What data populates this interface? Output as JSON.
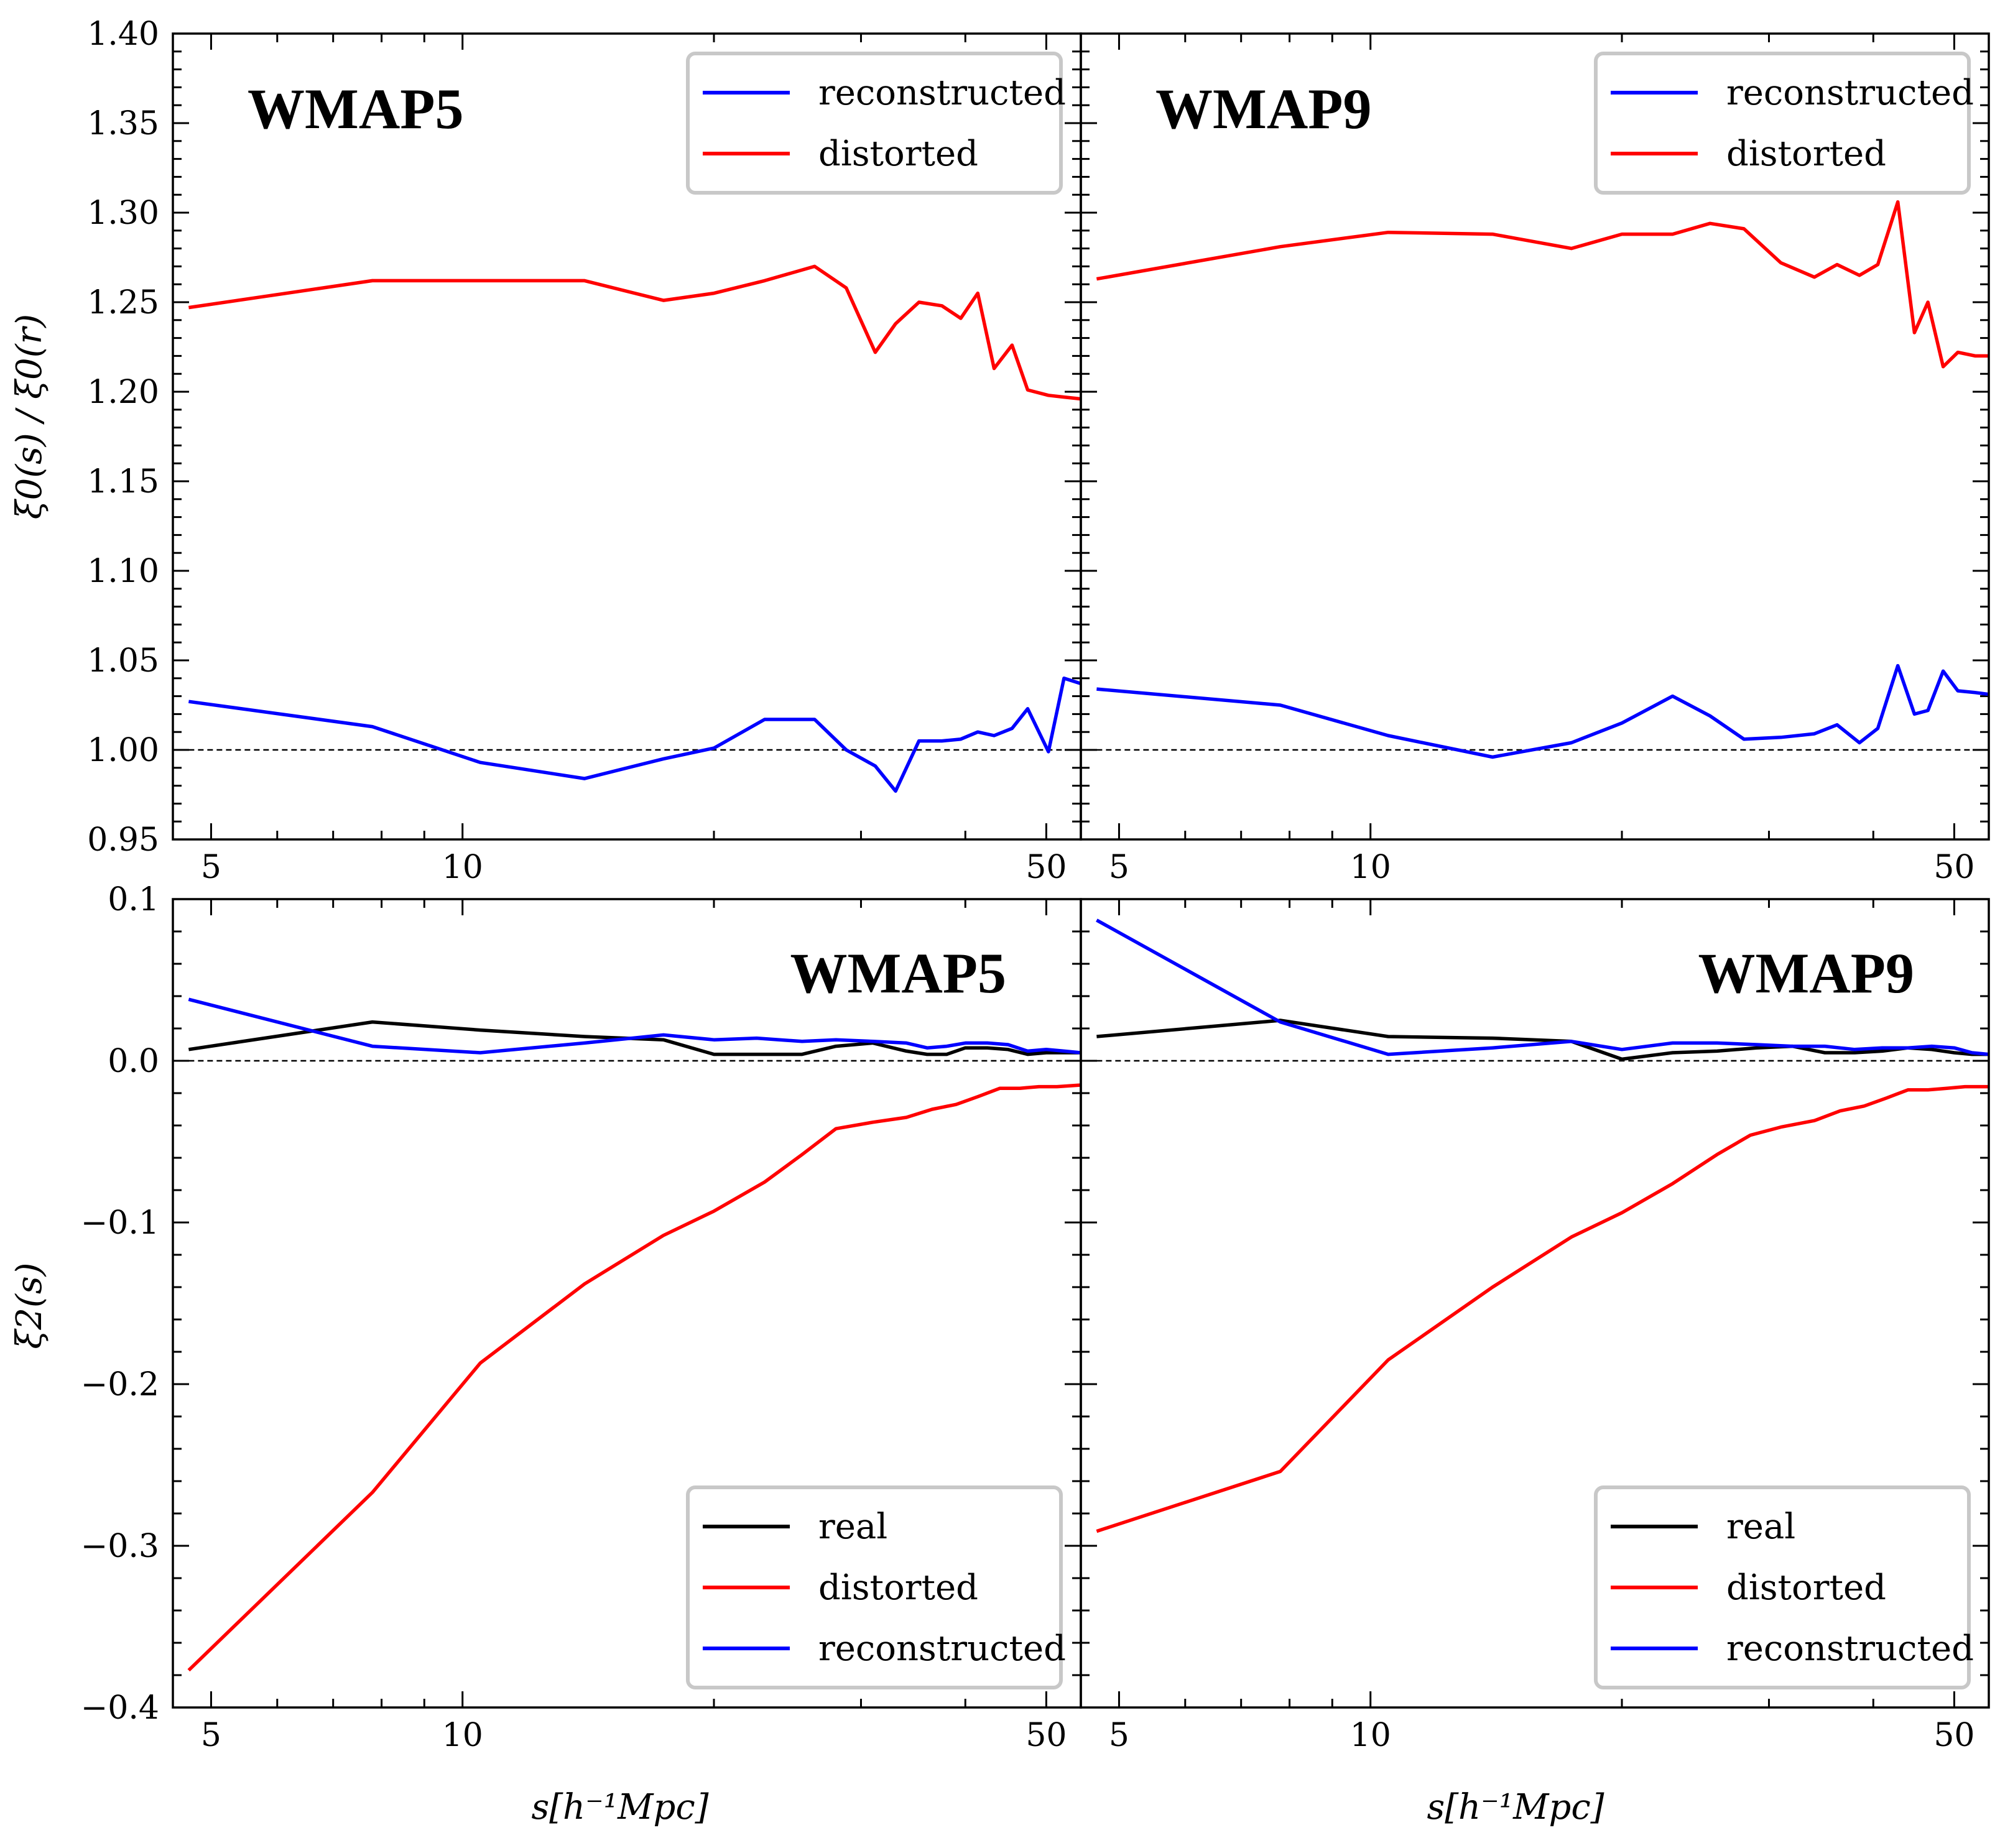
{
  "figure": {
    "xlabel": "s[h⁻¹Mpc]",
    "ylabel_top": "ξ0(s) / ξ0(r)",
    "ylabel_bottom": "ξ2(s)"
  },
  "colors": {
    "real": "#000000",
    "distorted": "#ff0000",
    "reconstructed": "#0000ff",
    "reference": "#000000"
  },
  "chart_data": [
    {
      "id": "top-left",
      "type": "line",
      "title": "WMAP5",
      "xscale": "log",
      "xlim": [
        4.5,
        55
      ],
      "ylim": [
        0.95,
        1.4
      ],
      "xticks": [
        5,
        10,
        50
      ],
      "yticks": [
        "0.95",
        "1.00",
        "1.05",
        "1.10",
        "1.15",
        "1.20",
        "1.25",
        "1.30",
        "1.35",
        "1.40"
      ],
      "reference_y": 1.0,
      "legend": {
        "location": "upper right",
        "entries": [
          "reconstructed",
          "distorted"
        ]
      },
      "series": [
        {
          "name": "reconstructed",
          "color": "#0000ff",
          "x": [
            4.7,
            7.8,
            10.5,
            14.0,
            17.4,
            20.0,
            23.0,
            26.4,
            28.8,
            31.2,
            33.0,
            35.2,
            37.5,
            39.5,
            41.4,
            43.3,
            45.5,
            47.5,
            50.3,
            52.5,
            55.0
          ],
          "y": [
            1.027,
            1.013,
            0.993,
            0.984,
            0.995,
            1.001,
            1.017,
            1.017,
            1.0,
            0.991,
            0.977,
            1.005,
            1.005,
            1.006,
            1.01,
            1.008,
            1.012,
            1.023,
            0.999,
            1.04,
            1.037
          ]
        },
        {
          "name": "distorted",
          "color": "#ff0000",
          "x": [
            4.7,
            7.8,
            10.5,
            14.0,
            17.4,
            20.0,
            23.0,
            26.4,
            28.8,
            31.2,
            33.0,
            35.2,
            37.5,
            39.5,
            41.4,
            43.3,
            45.5,
            47.5,
            50.3,
            52.5,
            55.0
          ],
          "y": [
            1.247,
            1.262,
            1.262,
            1.262,
            1.251,
            1.255,
            1.262,
            1.27,
            1.258,
            1.222,
            1.238,
            1.25,
            1.248,
            1.241,
            1.255,
            1.213,
            1.226,
            1.201,
            1.198,
            1.197,
            1.196
          ]
        }
      ]
    },
    {
      "id": "top-right",
      "type": "line",
      "title": "WMAP9",
      "xscale": "log",
      "xlim": [
        4.5,
        55
      ],
      "ylim": [
        0.95,
        1.4
      ],
      "xticks": [
        5,
        10,
        50
      ],
      "yticks": [],
      "reference_y": 1.0,
      "legend": {
        "location": "upper right",
        "entries": [
          "reconstructed",
          "distorted"
        ]
      },
      "series": [
        {
          "name": "reconstructed",
          "color": "#0000ff",
          "x": [
            4.7,
            7.8,
            10.5,
            14.0,
            17.4,
            20.0,
            23.0,
            25.5,
            28.0,
            31.0,
            34.0,
            36.2,
            38.5,
            40.5,
            42.8,
            44.8,
            46.5,
            48.5,
            50.5,
            53.0,
            55.0
          ],
          "y": [
            1.034,
            1.025,
            1.008,
            0.996,
            1.004,
            1.015,
            1.03,
            1.019,
            1.006,
            1.007,
            1.009,
            1.014,
            1.004,
            1.012,
            1.047,
            1.02,
            1.022,
            1.044,
            1.033,
            1.032,
            1.031
          ]
        },
        {
          "name": "distorted",
          "color": "#ff0000",
          "x": [
            4.7,
            7.8,
            10.5,
            14.0,
            17.4,
            20.0,
            23.0,
            25.5,
            28.0,
            31.0,
            34.0,
            36.2,
            38.5,
            40.5,
            42.8,
            44.8,
            46.5,
            48.5,
            50.5,
            53.0,
            55.0
          ],
          "y": [
            1.263,
            1.281,
            1.289,
            1.288,
            1.28,
            1.288,
            1.288,
            1.294,
            1.291,
            1.272,
            1.264,
            1.271,
            1.265,
            1.271,
            1.306,
            1.233,
            1.25,
            1.214,
            1.222,
            1.22,
            1.22
          ]
        }
      ]
    },
    {
      "id": "bottom-left",
      "type": "line",
      "title": "WMAP5",
      "xscale": "log",
      "xlim": [
        4.5,
        55
      ],
      "ylim": [
        -0.4,
        0.1
      ],
      "xticks": [
        5,
        10,
        50
      ],
      "yticks": [
        "−0.4",
        "−0.3",
        "−0.2",
        "−0.1",
        "0.0",
        "0.1"
      ],
      "reference_y": 0.0,
      "legend": {
        "location": "lower right",
        "entries": [
          "real",
          "distorted",
          "reconstructed"
        ]
      },
      "series": [
        {
          "name": "real",
          "color": "#000000",
          "x": [
            4.7,
            7.8,
            10.5,
            14.0,
            17.4,
            20.0,
            22.5,
            25.5,
            28.0,
            31.0,
            34.0,
            36.0,
            38.0,
            40.0,
            42.5,
            45.0,
            47.5,
            50.0,
            52.5,
            55.0
          ],
          "y": [
            0.007,
            0.024,
            0.019,
            0.015,
            0.013,
            0.004,
            0.004,
            0.004,
            0.009,
            0.011,
            0.006,
            0.004,
            0.004,
            0.008,
            0.008,
            0.007,
            0.004,
            0.005,
            0.005,
            0.005
          ]
        },
        {
          "name": "distorted",
          "color": "#ff0000",
          "x": [
            4.7,
            7.8,
            10.5,
            14.0,
            17.4,
            20.0,
            23.0,
            25.5,
            28.0,
            31.0,
            34.0,
            36.5,
            39.0,
            41.5,
            44.0,
            46.5,
            49.0,
            51.5,
            55.0
          ],
          "y": [
            -0.377,
            -0.267,
            -0.187,
            -0.138,
            -0.108,
            -0.093,
            -0.075,
            -0.058,
            -0.042,
            -0.038,
            -0.035,
            -0.03,
            -0.027,
            -0.022,
            -0.017,
            -0.017,
            -0.016,
            -0.016,
            -0.015
          ]
        },
        {
          "name": "reconstructed",
          "color": "#0000ff",
          "x": [
            4.7,
            7.8,
            10.5,
            14.0,
            17.4,
            20.0,
            22.5,
            25.5,
            28.0,
            31.0,
            34.0,
            36.0,
            38.0,
            40.0,
            42.5,
            45.0,
            47.5,
            50.0,
            52.5,
            55.0
          ],
          "y": [
            0.038,
            0.009,
            0.005,
            0.011,
            0.016,
            0.013,
            0.014,
            0.012,
            0.013,
            0.012,
            0.011,
            0.008,
            0.009,
            0.011,
            0.011,
            0.01,
            0.006,
            0.007,
            0.006,
            0.005
          ]
        }
      ]
    },
    {
      "id": "bottom-right",
      "type": "line",
      "title": "WMAP9",
      "xscale": "log",
      "xlim": [
        4.5,
        55
      ],
      "ylim": [
        -0.4,
        0.1
      ],
      "xticks": [
        5,
        10,
        50
      ],
      "yticks": [],
      "reference_y": 0.0,
      "legend": {
        "location": "lower right",
        "entries": [
          "real",
          "distorted",
          "reconstructed"
        ]
      },
      "series": [
        {
          "name": "real",
          "color": "#000000",
          "x": [
            4.7,
            7.8,
            10.5,
            14.0,
            17.4,
            20.0,
            23.0,
            26.0,
            29.0,
            32.0,
            35.0,
            38.0,
            41.0,
            44.0,
            47.0,
            50.0,
            52.5,
            55.0
          ],
          "y": [
            0.015,
            0.025,
            0.015,
            0.014,
            0.012,
            0.001,
            0.005,
            0.006,
            0.008,
            0.009,
            0.005,
            0.005,
            0.006,
            0.008,
            0.007,
            0.005,
            0.004,
            0.004
          ]
        },
        {
          "name": "distorted",
          "color": "#ff0000",
          "x": [
            4.7,
            7.8,
            10.5,
            14.0,
            17.4,
            20.0,
            23.0,
            26.0,
            28.5,
            31.0,
            34.0,
            36.5,
            39.0,
            41.5,
            44.0,
            46.5,
            49.0,
            51.5,
            55.0
          ],
          "y": [
            -0.291,
            -0.254,
            -0.185,
            -0.14,
            -0.109,
            -0.094,
            -0.076,
            -0.058,
            -0.046,
            -0.041,
            -0.037,
            -0.031,
            -0.028,
            -0.023,
            -0.018,
            -0.018,
            -0.017,
            -0.016,
            -0.016
          ]
        },
        {
          "name": "reconstructed",
          "color": "#0000ff",
          "x": [
            4.7,
            7.8,
            10.5,
            14.0,
            17.4,
            20.0,
            23.0,
            26.0,
            29.0,
            32.0,
            35.0,
            38.0,
            41.0,
            44.0,
            47.0,
            50.0,
            52.5,
            55.0
          ],
          "y": [
            0.087,
            0.024,
            0.004,
            0.008,
            0.012,
            0.007,
            0.011,
            0.011,
            0.01,
            0.009,
            0.009,
            0.007,
            0.008,
            0.008,
            0.009,
            0.008,
            0.005,
            0.004
          ]
        }
      ]
    }
  ]
}
